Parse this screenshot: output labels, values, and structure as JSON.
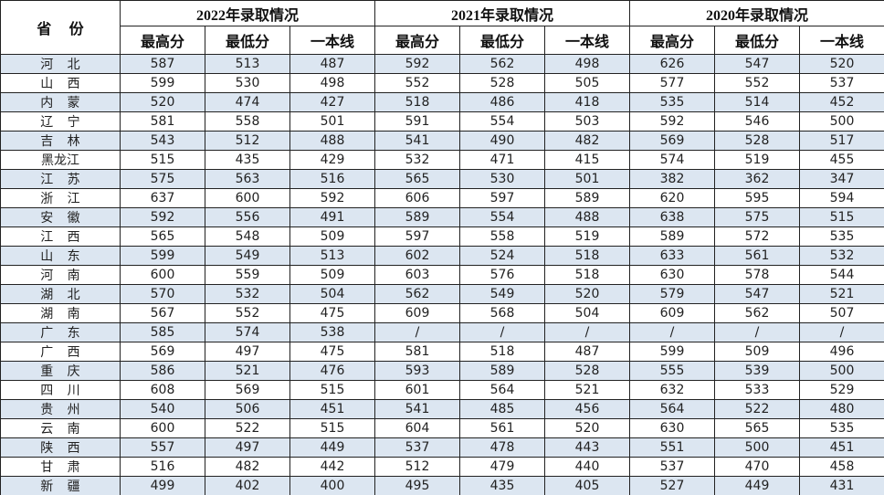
{
  "header": {
    "province": "省份",
    "groups": [
      {
        "title": "2022年录取情况",
        "columns": [
          "最高分",
          "最低分",
          "一本线"
        ]
      },
      {
        "title": "2021年录取情况",
        "columns": [
          "最高分",
          "最低分",
          "一本线"
        ]
      },
      {
        "title": "2020年录取情况",
        "columns": [
          "最高分",
          "最低分",
          "一本线"
        ]
      }
    ]
  },
  "table": {
    "rows": [
      [
        "河北",
        "587",
        "513",
        "487",
        "592",
        "562",
        "498",
        "626",
        "547",
        "520"
      ],
      [
        "山西",
        "599",
        "530",
        "498",
        "552",
        "528",
        "505",
        "577",
        "552",
        "537"
      ],
      [
        "内蒙",
        "520",
        "474",
        "427",
        "518",
        "486",
        "418",
        "535",
        "514",
        "452"
      ],
      [
        "辽宁",
        "581",
        "558",
        "501",
        "591",
        "554",
        "503",
        "592",
        "546",
        "500"
      ],
      [
        "吉林",
        "543",
        "512",
        "488",
        "541",
        "490",
        "482",
        "569",
        "528",
        "517"
      ],
      [
        "黑龙江",
        "515",
        "435",
        "429",
        "532",
        "471",
        "415",
        "574",
        "519",
        "455"
      ],
      [
        "江苏",
        "575",
        "563",
        "516",
        "565",
        "530",
        "501",
        "382",
        "362",
        "347"
      ],
      [
        "浙江",
        "637",
        "600",
        "592",
        "606",
        "597",
        "589",
        "620",
        "595",
        "594"
      ],
      [
        "安徽",
        "592",
        "556",
        "491",
        "589",
        "554",
        "488",
        "638",
        "575",
        "515"
      ],
      [
        "江西",
        "565",
        "548",
        "509",
        "597",
        "558",
        "519",
        "589",
        "572",
        "535"
      ],
      [
        "山东",
        "599",
        "549",
        "513",
        "602",
        "524",
        "518",
        "633",
        "561",
        "532"
      ],
      [
        "河南",
        "600",
        "559",
        "509",
        "603",
        "576",
        "518",
        "630",
        "578",
        "544"
      ],
      [
        "湖北",
        "570",
        "532",
        "504",
        "562",
        "549",
        "520",
        "579",
        "547",
        "521"
      ],
      [
        "湖南",
        "567",
        "552",
        "475",
        "609",
        "568",
        "504",
        "609",
        "562",
        "507"
      ],
      [
        "广东",
        "585",
        "574",
        "538",
        "/",
        "/",
        "/",
        "/",
        "/",
        "/"
      ],
      [
        "广西",
        "569",
        "497",
        "475",
        "581",
        "518",
        "487",
        "599",
        "509",
        "496"
      ],
      [
        "重庆",
        "586",
        "521",
        "476",
        "593",
        "589",
        "528",
        "555",
        "539",
        "500"
      ],
      [
        "四川",
        "608",
        "569",
        "515",
        "601",
        "564",
        "521",
        "632",
        "533",
        "529"
      ],
      [
        "贵州",
        "540",
        "506",
        "451",
        "541",
        "485",
        "456",
        "564",
        "522",
        "480"
      ],
      [
        "云南",
        "600",
        "522",
        "515",
        "604",
        "561",
        "520",
        "630",
        "565",
        "535"
      ],
      [
        "陕西",
        "557",
        "497",
        "449",
        "537",
        "478",
        "443",
        "551",
        "500",
        "451"
      ],
      [
        "甘肃",
        "516",
        "482",
        "442",
        "512",
        "479",
        "440",
        "537",
        "470",
        "458"
      ],
      [
        "新疆",
        "499",
        "402",
        "400",
        "495",
        "435",
        "405",
        "527",
        "449",
        "431"
      ]
    ]
  }
}
